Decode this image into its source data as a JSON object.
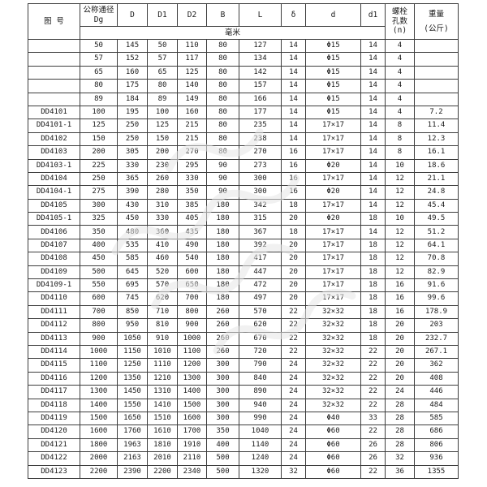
{
  "table": {
    "headers": {
      "fig_no": "图  号",
      "dg_line1": "公称通径",
      "dg_line2": "Dg",
      "col_D": "D",
      "col_D1": "D1",
      "col_D2": "D2",
      "col_B": "B",
      "col_L": "L",
      "col_delta": "δ",
      "col_d": "d",
      "col_d1": "d1",
      "unit_row": "毫米",
      "bolt_line1": "螺栓",
      "bolt_line2": "孔数",
      "bolt_line3": "(n)",
      "weight_line1": "重量",
      "weight_line2": "(公斤)"
    },
    "rows": [
      [
        "",
        "50",
        "145",
        "50",
        "110",
        "80",
        "127",
        "14",
        "Φ15",
        "14",
        "4",
        ""
      ],
      [
        "",
        "57",
        "152",
        "57",
        "117",
        "80",
        "134",
        "14",
        "Φ15",
        "14",
        "4",
        ""
      ],
      [
        "",
        "65",
        "160",
        "65",
        "125",
        "80",
        "142",
        "14",
        "Φ15",
        "14",
        "4",
        ""
      ],
      [
        "",
        "80",
        "175",
        "80",
        "140",
        "80",
        "157",
        "14",
        "Φ15",
        "14",
        "4",
        ""
      ],
      [
        "",
        "89",
        "184",
        "89",
        "149",
        "80",
        "166",
        "14",
        "Φ15",
        "14",
        "4",
        ""
      ],
      [
        "DD4101",
        "100",
        "195",
        "100",
        "160",
        "80",
        "177",
        "14",
        "Φ15",
        "14",
        "4",
        "7.2"
      ],
      [
        "DD4101-1",
        "125",
        "250",
        "125",
        "215",
        "80",
        "235",
        "14",
        "17×17",
        "14",
        "8",
        "11.4"
      ],
      [
        "DD4102",
        "150",
        "250",
        "150",
        "215",
        "80",
        "238",
        "14",
        "17×17",
        "14",
        "8",
        "12.3"
      ],
      [
        "DD4103",
        "200",
        "305",
        "200",
        "270",
        "80",
        "270",
        "16",
        "17×17",
        "14",
        "8",
        "16.1"
      ],
      [
        "DD4103-1",
        "225",
        "330",
        "230",
        "295",
        "90",
        "273",
        "16",
        "Φ20",
        "14",
        "10",
        "18.6"
      ],
      [
        "DD4104",
        "250",
        "365",
        "260",
        "330",
        "90",
        "300",
        "16",
        "17×17",
        "14",
        "12",
        "21.1"
      ],
      [
        "DD4104-1",
        "275",
        "390",
        "280",
        "350",
        "90",
        "300",
        "16",
        "Φ20",
        "14",
        "12",
        "24.8"
      ],
      [
        "DD4105",
        "300",
        "430",
        "310",
        "385",
        "180",
        "342",
        "18",
        "17×17",
        "14",
        "12",
        "45.4"
      ],
      [
        "DD4105-1",
        "325",
        "450",
        "330",
        "405",
        "180",
        "315",
        "20",
        "Φ20",
        "18",
        "10",
        "49.5"
      ],
      [
        "DD4106",
        "350",
        "480",
        "360",
        "435",
        "180",
        "367",
        "18",
        "17×17",
        "14",
        "12",
        "51.2"
      ],
      [
        "DD4107",
        "400",
        "535",
        "410",
        "490",
        "180",
        "392",
        "20",
        "17×17",
        "18",
        "12",
        "64.1"
      ],
      [
        "DD4108",
        "450",
        "585",
        "460",
        "540",
        "180",
        "417",
        "20",
        "17×17",
        "18",
        "12",
        "70.8"
      ],
      [
        "DD4109",
        "500",
        "645",
        "520",
        "600",
        "180",
        "447",
        "20",
        "17×17",
        "18",
        "12",
        "82.9"
      ],
      [
        "DD4109-1",
        "550",
        "695",
        "570",
        "650",
        "180",
        "472",
        "20",
        "17×17",
        "18",
        "16",
        "91.6"
      ],
      [
        "DD4110",
        "600",
        "745",
        "620",
        "700",
        "180",
        "497",
        "20",
        "17×17",
        "18",
        "16",
        "99.6"
      ],
      [
        "DD4111",
        "700",
        "850",
        "710",
        "800",
        "260",
        "570",
        "22",
        "32×32",
        "18",
        "16",
        "178.9"
      ],
      [
        "DD4112",
        "800",
        "950",
        "810",
        "900",
        "260",
        "620",
        "22",
        "32×32",
        "18",
        "20",
        "203"
      ],
      [
        "DD4113",
        "900",
        "1050",
        "910",
        "1000",
        "260",
        "670",
        "22",
        "32×32",
        "18",
        "20",
        "232.7"
      ],
      [
        "DD4114",
        "1000",
        "1150",
        "1010",
        "1100",
        "260",
        "720",
        "22",
        "32×32",
        "22",
        "20",
        "267.1"
      ],
      [
        "DD4115",
        "1100",
        "1250",
        "1110",
        "1200",
        "300",
        "790",
        "24",
        "32×32",
        "22",
        "20",
        "362"
      ],
      [
        "DD4116",
        "1200",
        "1350",
        "1210",
        "1300",
        "300",
        "840",
        "24",
        "32×32",
        "22",
        "20",
        "408"
      ],
      [
        "DD4117",
        "1300",
        "1450",
        "1310",
        "1400",
        "300",
        "890",
        "24",
        "32×32",
        "22",
        "24",
        "446"
      ],
      [
        "DD4118",
        "1400",
        "1550",
        "1410",
        "1500",
        "300",
        "940",
        "24",
        "32×32",
        "22",
        "28",
        "484"
      ],
      [
        "DD4119",
        "1500",
        "1650",
        "1510",
        "1600",
        "300",
        "990",
        "24",
        "Φ40",
        "33",
        "28",
        "585"
      ],
      [
        "DD4120",
        "1600",
        "1760",
        "1610",
        "1700",
        "350",
        "1040",
        "24",
        "Φ60",
        "22",
        "28",
        "686"
      ],
      [
        "DD4121",
        "1800",
        "1963",
        "1810",
        "1910",
        "400",
        "1140",
        "24",
        "Φ60",
        "26",
        "28",
        "806"
      ],
      [
        "DD4122",
        "2000",
        "2163",
        "2010",
        "2110",
        "500",
        "1240",
        "24",
        "Φ60",
        "26",
        "32",
        "936"
      ],
      [
        "DD4123",
        "2200",
        "2390",
        "2200",
        "2340",
        "500",
        "1320",
        "32",
        "Φ60",
        "22",
        "36",
        "1355"
      ]
    ]
  },
  "colors": {
    "border": "#3d3d3d",
    "text": "#1a1a1a",
    "background": "#ffffff",
    "watermark": "#e7e7e7"
  }
}
